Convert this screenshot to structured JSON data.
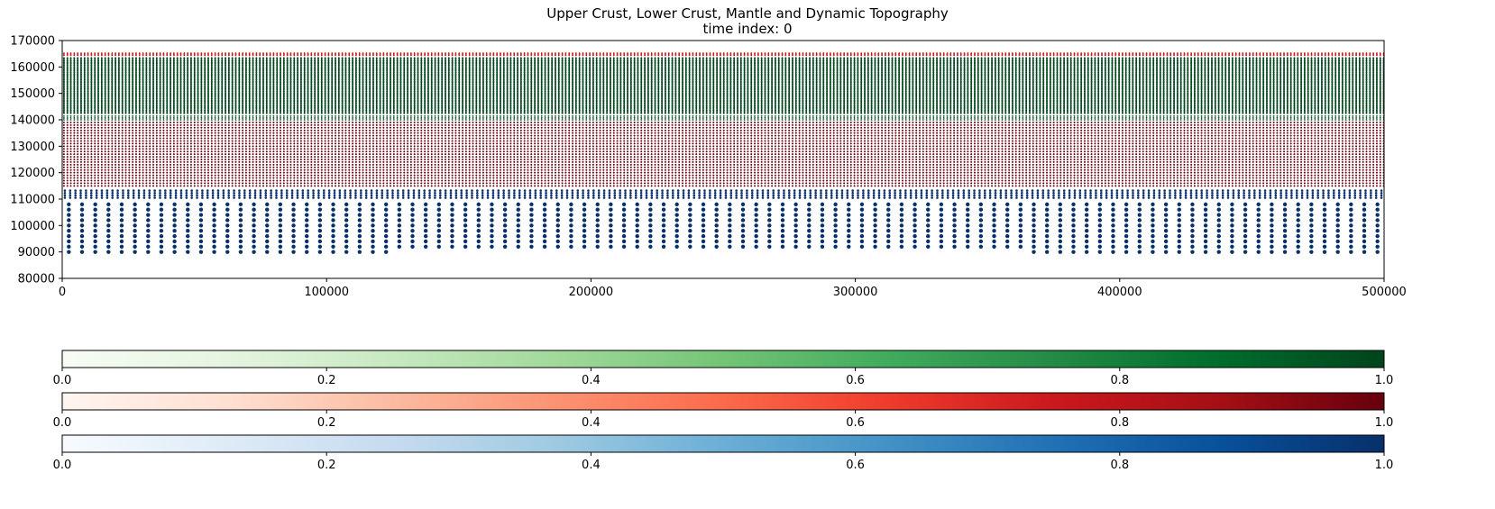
{
  "chart_data": {
    "type": "scatter",
    "title": "Upper Crust, Lower Crust, Mantle and Dynamic Topography",
    "subtitle": "time index: 0",
    "xlim": [
      0,
      500000
    ],
    "ylim": [
      80000,
      170000
    ],
    "x_ticks": [
      "0",
      "100000",
      "200000",
      "300000",
      "400000",
      "500000"
    ],
    "y_ticks": [
      "80000",
      "90000",
      "100000",
      "110000",
      "120000",
      "130000",
      "140000",
      "150000",
      "160000",
      "170000"
    ],
    "grid": false,
    "layers": [
      {
        "cmap": "Blues",
        "color": "#08306b",
        "y_range": [
          90000,
          108000
        ],
        "dy": 2000,
        "dx": 5000,
        "marker_size": 2.2,
        "gaps": [
          {
            "y": 90000,
            "x_from": 126000,
            "x_to": 364000
          }
        ]
      },
      {
        "cmap": "Blues",
        "color": "#08306b",
        "y_range": [
          110500,
          114000
        ],
        "dy": 900,
        "dx": 2000,
        "marker_size": 1.3,
        "gaps": []
      },
      {
        "cmap": "Reds",
        "color": "#67000d",
        "y_range": [
          115000,
          139500
        ],
        "dy": 1000,
        "dx": 1300,
        "marker_size": 1.0,
        "gaps": []
      },
      {
        "cmap": "Greens",
        "color": "#00441b",
        "y_range": [
          140000,
          142000
        ],
        "dy": 700,
        "dx": 1300,
        "marker_size": 0.9,
        "gaps": []
      },
      {
        "cmap": "Greens",
        "color": "#00441b",
        "y_range": [
          142500,
          163800
        ],
        "dy": 550,
        "dx": 1300,
        "marker_size": 1.0,
        "gaps": []
      },
      {
        "cmap": "Reds",
        "color": "#cb181d",
        "y_range": [
          164400,
          165200
        ],
        "dy": 400,
        "dx": 1300,
        "marker_size": 0.9,
        "gaps": []
      }
    ],
    "colorbars": [
      {
        "name": "Greens",
        "range": [
          0.0,
          1.0
        ],
        "ticks": [
          "0.0",
          "0.2",
          "0.4",
          "0.6",
          "0.8",
          "1.0"
        ],
        "colors": [
          "#f7fcf5",
          "#e5f5e0",
          "#c7e9c0",
          "#a1d99b",
          "#74c476",
          "#41ab5d",
          "#238b45",
          "#006d2c",
          "#00441b"
        ]
      },
      {
        "name": "Reds",
        "range": [
          0.0,
          1.0
        ],
        "ticks": [
          "0.0",
          "0.2",
          "0.4",
          "0.6",
          "0.8",
          "1.0"
        ],
        "colors": [
          "#fff5f0",
          "#fee0d2",
          "#fcbba1",
          "#fc9272",
          "#fb6a4a",
          "#ef3b2c",
          "#cb181d",
          "#a50f15",
          "#67000d"
        ]
      },
      {
        "name": "Blues",
        "range": [
          0.0,
          1.0
        ],
        "ticks": [
          "0.0",
          "0.2",
          "0.4",
          "0.6",
          "0.8",
          "1.0"
        ],
        "colors": [
          "#f7fbff",
          "#deebf7",
          "#c6dbef",
          "#9ecae1",
          "#6baed6",
          "#4292c6",
          "#2171b5",
          "#08519c",
          "#08306b"
        ]
      }
    ]
  }
}
